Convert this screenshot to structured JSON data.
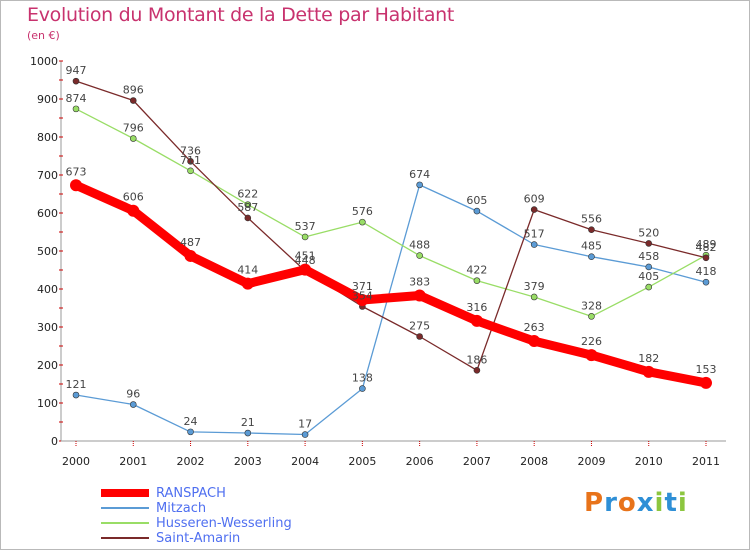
{
  "title": "Evolution du Montant de la Dette par Habitant",
  "unit": "(en €)",
  "logo": {
    "text": "Proxiti",
    "letters": [
      "P",
      "r",
      "o",
      "x",
      "i",
      "t",
      "i"
    ],
    "colors": [
      "#e8731a",
      "#2e8fd6",
      "#e8731a",
      "#2e8fd6",
      "#8cc63f",
      "#2e8fd6",
      "#8cc63f"
    ]
  },
  "chart_data": {
    "type": "line",
    "title": "Evolution du Montant de la Dette par Habitant",
    "ylabel": "(en €)",
    "xlabel": "",
    "x": [
      "2000",
      "2001",
      "2002",
      "2003",
      "2004",
      "2005",
      "2006",
      "2007",
      "2008",
      "2009",
      "2010",
      "2011"
    ],
    "ylim": [
      0,
      1000
    ],
    "yticks": [
      0,
      100,
      200,
      300,
      400,
      500,
      600,
      700,
      800,
      900,
      1000
    ],
    "grid": false,
    "legend": "bottom-left",
    "series": [
      {
        "name": "RANSPACH",
        "color": "#ff0000",
        "values": [
          673,
          606,
          487,
          414,
          451,
          371,
          383,
          316,
          263,
          226,
          182,
          153
        ]
      },
      {
        "name": "Mitzach",
        "color": "#5b9bd5",
        "values": [
          121,
          96,
          24,
          21,
          17,
          138,
          674,
          605,
          517,
          485,
          458,
          418
        ]
      },
      {
        "name": "Husseren-Wesserling",
        "color": "#99dd66",
        "values": [
          874,
          796,
          711,
          622,
          537,
          576,
          488,
          422,
          379,
          328,
          405,
          489
        ]
      },
      {
        "name": "Saint-Amarin",
        "color": "#7a2a2a",
        "values": [
          947,
          896,
          736,
          587,
          448,
          354,
          275,
          186,
          609,
          556,
          520,
          482
        ]
      }
    ]
  }
}
